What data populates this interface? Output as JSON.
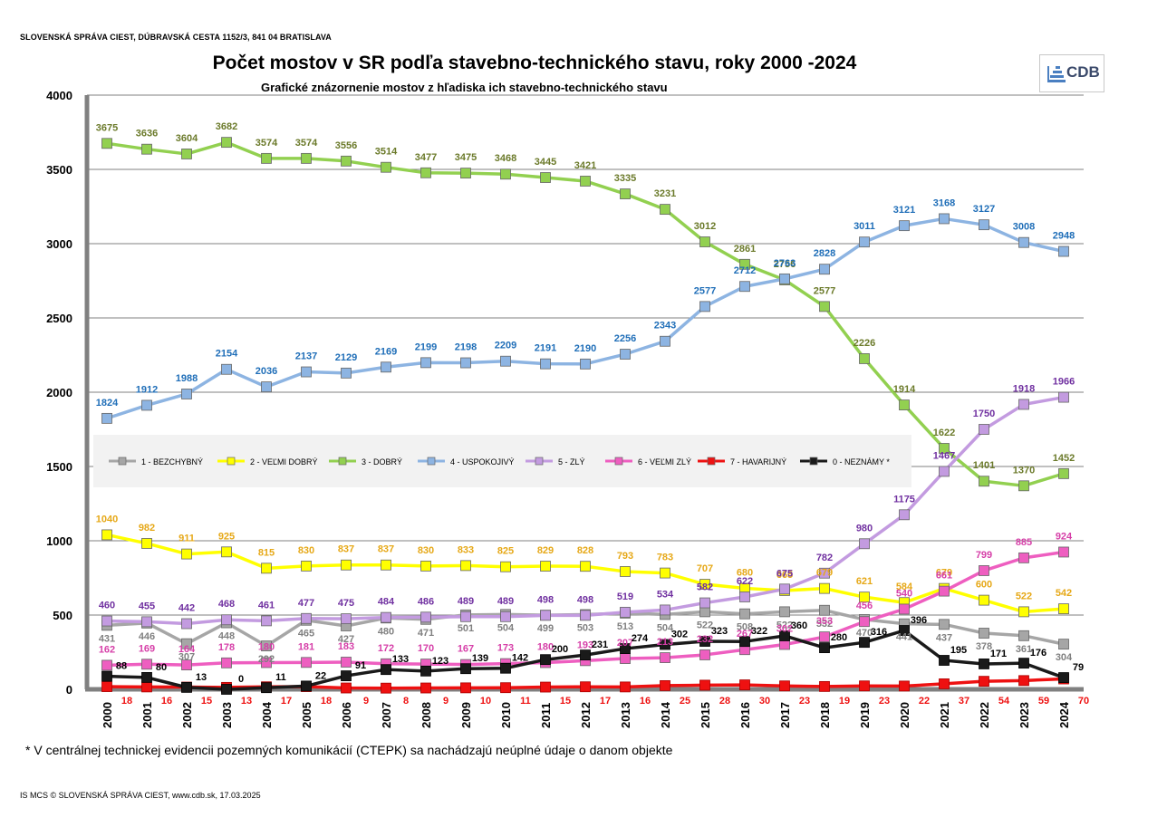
{
  "header": {
    "organization": "SLOVENSKÁ SPRÁVA CIEST,  DÚBRAVSKÁ CESTA 1152/3, 841 04  BRATISLAVA",
    "logo_text": "CDB"
  },
  "footer": {
    "footnote": "*   V centrálnej  technickej evidencii pozemných komunikácií (CTEPK) sa nachádzajú neúplné údaje o danom objekte",
    "copyright": "IS MCS © SLOVENSKÁ SPRÁVA CIEST, www.cdb.sk, 17.03.2025"
  },
  "chart_data": {
    "type": "line",
    "title": "Počet mostov v SR podľa stavebno-technického stavu, roky 2000 -2024",
    "subtitle": "Grafické znázornenie mostov z hľadiska ich stavebno-technického stavu",
    "xlabel": "",
    "ylabel": "",
    "ylim": [
      0,
      4000
    ],
    "yticks": [
      0,
      500,
      1000,
      1500,
      2000,
      2500,
      3000,
      3500,
      4000
    ],
    "grid": "horizontal",
    "legend_position": "middle-left",
    "categories": [
      "2000",
      "2001",
      "2002",
      "2003",
      "2004",
      "2005",
      "2006",
      "2007",
      "2008",
      "2009",
      "2010",
      "2011",
      "2012",
      "2013",
      "2014",
      "2015",
      "2016",
      "2017",
      "2018",
      "2019",
      "2020",
      "2021",
      "2022",
      "2023",
      "2024"
    ],
    "series": [
      {
        "name": "1 - BEZCHYBNÝ",
        "color": "#a6a6a6",
        "label_color": "#808080",
        "values": [
          431,
          446,
          307,
          448,
          292,
          465,
          427,
          480,
          471,
          501,
          504,
          499,
          503,
          513,
          504,
          522,
          508,
          522,
          532,
          470,
          441,
          437,
          378,
          361,
          304
        ]
      },
      {
        "name": "2 - VEĽMI DOBRÝ",
        "color": "#ffff00",
        "label_color": "#e6a817",
        "values": [
          1040,
          982,
          911,
          925,
          815,
          830,
          837,
          837,
          830,
          833,
          825,
          829,
          828,
          793,
          783,
          707,
          680,
          665,
          679,
          621,
          584,
          679,
          600,
          522,
          542
        ]
      },
      {
        "name": "3 - DOBRÝ",
        "color": "#92d050",
        "label_color": "#6b7a2a",
        "values": [
          3675,
          3636,
          3604,
          3682,
          3574,
          3574,
          3556,
          3514,
          3477,
          3475,
          3468,
          3445,
          3421,
          3335,
          3231,
          3012,
          2861,
          2756,
          2577,
          2226,
          1914,
          1622,
          1401,
          1370,
          1452
        ]
      },
      {
        "name": "4 - USPOKOJIVÝ",
        "color": "#8db4e2",
        "label_color": "#1f6eb8",
        "values": [
          1824,
          1912,
          1988,
          2154,
          2036,
          2137,
          2129,
          2169,
          2199,
          2198,
          2209,
          2191,
          2190,
          2256,
          2343,
          2577,
          2712,
          2763,
          2828,
          3011,
          3121,
          3168,
          3127,
          3008,
          2948
        ]
      },
      {
        "name": "5 - ZLÝ",
        "color": "#c39be0",
        "label_color": "#7030a0",
        "values": [
          460,
          455,
          442,
          468,
          461,
          477,
          475,
          484,
          486,
          489,
          489,
          498,
          498,
          519,
          534,
          582,
          622,
          675,
          782,
          980,
          1175,
          1467,
          1750,
          1918,
          1966
        ]
      },
      {
        "name": "6 - VEĽMI ZLÝ",
        "color": "#ee5ec0",
        "label_color": "#d63fa8",
        "values": [
          162,
          169,
          164,
          178,
          180,
          181,
          183,
          172,
          170,
          167,
          173,
          180,
          193,
          207,
          213,
          232,
          267,
          302,
          353,
          456,
          540,
          661,
          799,
          885,
          924
        ]
      },
      {
        "name": "7 - HAVARIJNÝ",
        "color": "#ee1111",
        "label_color": "#ee1111",
        "values": [
          18,
          16,
          15,
          13,
          17,
          18,
          9,
          8,
          9,
          10,
          11,
          15,
          17,
          16,
          25,
          28,
          30,
          23,
          19,
          23,
          22,
          37,
          54,
          59,
          70
        ]
      },
      {
        "name": "0 - NEZNÁMY  *",
        "color": "#1a1a1a",
        "label_color": "#000000",
        "values": [
          88,
          80,
          13,
          0,
          11,
          22,
          91,
          133,
          123,
          139,
          142,
          200,
          231,
          274,
          302,
          323,
          322,
          360,
          280,
          316,
          396,
          195,
          171,
          176,
          79
        ]
      }
    ]
  }
}
